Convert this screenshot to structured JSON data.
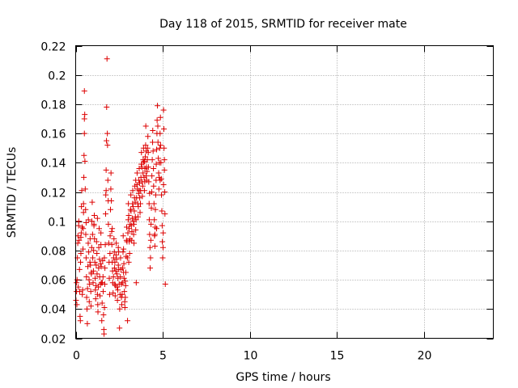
{
  "chart_data": {
    "type": "scatter",
    "title": "Day 118 of 2015, SRMTID for receiver mate",
    "xlabel": "GPS time / hours",
    "ylabel": "SRMTID / TECUs",
    "xlim": [
      0,
      24
    ],
    "ylim": [
      0.02,
      0.22
    ],
    "x_ticks": [
      0,
      5,
      10,
      15,
      20
    ],
    "x_tick_labels": [
      "0",
      "5",
      "10",
      "15",
      "20"
    ],
    "y_ticks": [
      0.02,
      0.04,
      0.06,
      0.08,
      0.1,
      0.12,
      0.14,
      0.16,
      0.18,
      0.2,
      0.22
    ],
    "y_tick_labels": [
      "0.02",
      "0.04",
      "0.06",
      "0.08",
      "0.1",
      "0.12",
      "0.14",
      "0.16",
      "0.18",
      "0.2",
      "0.22"
    ],
    "grid": true,
    "legend": "none",
    "marker": "+",
    "color": "#dd0000",
    "points": [
      [
        0.02,
        0.046
      ],
      [
        0.05,
        0.052
      ],
      [
        0.05,
        0.058
      ],
      [
        0.07,
        0.043
      ],
      [
        0.08,
        0.06
      ],
      [
        0.1,
        0.075
      ],
      [
        0.12,
        0.085
      ],
      [
        0.13,
        0.09
      ],
      [
        0.15,
        0.055
      ],
      [
        0.17,
        0.097
      ],
      [
        0.18,
        0.1
      ],
      [
        0.2,
        0.087
      ],
      [
        0.22,
        0.067
      ],
      [
        0.23,
        0.052
      ],
      [
        0.25,
        0.035
      ],
      [
        0.27,
        0.032
      ],
      [
        0.28,
        0.072
      ],
      [
        0.3,
        0.078
      ],
      [
        0.32,
        0.092
      ],
      [
        0.33,
        0.11
      ],
      [
        0.35,
        0.121
      ],
      [
        0.37,
        0.096
      ],
      [
        0.38,
        0.05
      ],
      [
        0.4,
        0.053
      ],
      [
        0.42,
        0.081
      ],
      [
        0.43,
        0.095
      ],
      [
        0.45,
        0.106
      ],
      [
        0.47,
        0.13
      ],
      [
        0.48,
        0.145
      ],
      [
        0.5,
        0.16
      ],
      [
        0.5,
        0.17
      ],
      [
        0.5,
        0.189
      ],
      [
        0.52,
        0.173
      ],
      [
        0.53,
        0.141
      ],
      [
        0.55,
        0.122
      ],
      [
        0.57,
        0.108
      ],
      [
        0.58,
        0.091
      ],
      [
        0.6,
        0.075
      ],
      [
        0.62,
        0.062
      ],
      [
        0.63,
        0.048
      ],
      [
        0.65,
        0.04
      ],
      [
        0.67,
        0.03
      ],
      [
        0.68,
        0.054
      ],
      [
        0.7,
        0.069
      ],
      [
        0.72,
        0.085
      ],
      [
        0.73,
        0.101
      ],
      [
        0.75,
        0.079
      ],
      [
        0.77,
        0.06
      ],
      [
        0.78,
        0.045
      ],
      [
        0.8,
        0.057
      ],
      [
        0.82,
        0.072
      ],
      [
        0.83,
        0.088
      ],
      [
        0.85,
        0.07
      ],
      [
        0.87,
        0.052
      ],
      [
        0.88,
        0.042
      ],
      [
        0.9,
        0.065
      ],
      [
        0.92,
        0.082
      ],
      [
        0.93,
        0.1
      ],
      [
        0.95,
        0.113
      ],
      [
        0.97,
        0.091
      ],
      [
        0.98,
        0.075
      ],
      [
        1.0,
        0.058
      ],
      [
        1.02,
        0.066
      ],
      [
        1.03,
        0.08
      ],
      [
        1.05,
        0.097
      ],
      [
        1.07,
        0.104
      ],
      [
        1.08,
        0.088
      ],
      [
        1.1,
        0.072
      ],
      [
        1.12,
        0.061
      ],
      [
        1.13,
        0.053
      ],
      [
        1.15,
        0.047
      ],
      [
        1.17,
        0.056
      ],
      [
        1.18,
        0.07
      ],
      [
        1.2,
        0.086
      ],
      [
        1.22,
        0.078
      ],
      [
        1.23,
        0.064
      ],
      [
        1.25,
        0.05
      ],
      [
        1.27,
        0.043
      ],
      [
        1.28,
        0.038
      ],
      [
        1.3,
        0.055
      ],
      [
        1.32,
        0.068
      ],
      [
        1.33,
        0.082
      ],
      [
        1.35,
        0.095
      ],
      [
        1.37,
        0.074
      ],
      [
        1.38,
        0.062
      ],
      [
        1.4,
        0.049
      ],
      [
        1.42,
        0.057
      ],
      [
        1.43,
        0.071
      ],
      [
        1.45,
        0.084
      ],
      [
        1.47,
        0.069
      ],
      [
        1.48,
        0.058
      ],
      [
        1.5,
        0.032
      ],
      [
        1.52,
        0.044
      ],
      [
        1.53,
        0.058
      ],
      [
        1.55,
        0.073
      ],
      [
        1.57,
        0.062
      ],
      [
        1.58,
        0.052
      ],
      [
        1.6,
        0.036
      ],
      [
        1.62,
        0.026
      ],
      [
        1.63,
        0.023
      ],
      [
        1.65,
        0.041
      ],
      [
        1.67,
        0.057
      ],
      [
        1.68,
        0.068
      ],
      [
        1.7,
        0.084
      ],
      [
        1.72,
        0.105
      ],
      [
        1.73,
        0.118
      ],
      [
        1.75,
        0.135
      ],
      [
        1.77,
        0.155
      ],
      [
        1.78,
        0.178
      ],
      [
        1.8,
        0.211
      ],
      [
        1.82,
        0.16
      ],
      [
        1.83,
        0.152
      ],
      [
        1.85,
        0.128
      ],
      [
        1.87,
        0.114
      ],
      [
        1.88,
        0.098
      ],
      [
        1.9,
        0.085
      ],
      [
        1.92,
        0.072
      ],
      [
        1.93,
        0.061
      ],
      [
        1.95,
        0.05
      ],
      [
        1.97,
        0.078
      ],
      [
        1.98,
        0.09
      ],
      [
        2.0,
        0.108
      ],
      [
        2.02,
        0.122
      ],
      [
        2.03,
        0.133
      ],
      [
        2.05,
        0.114
      ],
      [
        2.07,
        0.093
      ],
      [
        2.08,
        0.084
      ],
      [
        2.1,
        0.072
      ],
      [
        2.12,
        0.066
      ],
      [
        2.13,
        0.058
      ],
      [
        2.15,
        0.051
      ],
      [
        2.17,
        0.062
      ],
      [
        2.18,
        0.075
      ],
      [
        2.2,
        0.088
      ],
      [
        2.22,
        0.079
      ],
      [
        2.23,
        0.068
      ],
      [
        2.25,
        0.057
      ],
      [
        2.27,
        0.049
      ],
      [
        2.28,
        0.056
      ],
      [
        2.3,
        0.066
      ],
      [
        2.32,
        0.077
      ],
      [
        2.33,
        0.085
      ],
      [
        2.35,
        0.074
      ],
      [
        2.37,
        0.064
      ],
      [
        2.38,
        0.055
      ],
      [
        2.4,
        0.046
      ],
      [
        2.42,
        0.053
      ],
      [
        2.43,
        0.061
      ],
      [
        2.45,
        0.07
      ],
      [
        2.47,
        0.079
      ],
      [
        2.48,
        0.067
      ],
      [
        2.5,
        0.057
      ],
      [
        2.52,
        0.027
      ],
      [
        2.53,
        0.04
      ],
      [
        2.55,
        0.05
      ],
      [
        2.57,
        0.062
      ],
      [
        2.58,
        0.075
      ],
      [
        2.6,
        0.067
      ],
      [
        2.62,
        0.057
      ],
      [
        2.63,
        0.048
      ],
      [
        2.65,
        0.043
      ],
      [
        2.67,
        0.05
      ],
      [
        2.68,
        0.058
      ],
      [
        2.7,
        0.068
      ],
      [
        2.72,
        0.079
      ],
      [
        2.73,
        0.09
      ],
      [
        2.75,
        0.081
      ],
      [
        2.77,
        0.071
      ],
      [
        2.78,
        0.061
      ],
      [
        2.8,
        0.052
      ],
      [
        2.82,
        0.045
      ],
      [
        2.83,
        0.041
      ],
      [
        2.85,
        0.048
      ],
      [
        2.87,
        0.056
      ],
      [
        2.88,
        0.065
      ],
      [
        2.9,
        0.076
      ],
      [
        2.92,
        0.087
      ],
      [
        2.93,
        0.096
      ],
      [
        2.95,
        0.086
      ],
      [
        2.97,
        0.075
      ],
      [
        2.98,
        0.032
      ],
      [
        3.0,
        0.092
      ],
      [
        3.02,
        0.101
      ],
      [
        3.03,
        0.112
      ],
      [
        3.05,
        0.104
      ],
      [
        3.07,
        0.095
      ],
      [
        3.08,
        0.086
      ],
      [
        3.1,
        0.078
      ],
      [
        3.12,
        0.088
      ],
      [
        3.13,
        0.098
      ],
      [
        3.15,
        0.108
      ],
      [
        3.17,
        0.118
      ],
      [
        3.18,
        0.107
      ],
      [
        3.2,
        0.097
      ],
      [
        3.22,
        0.087
      ],
      [
        3.23,
        0.093
      ],
      [
        3.25,
        0.102
      ],
      [
        3.27,
        0.112
      ],
      [
        3.28,
        0.121
      ],
      [
        3.3,
        0.11
      ],
      [
        3.32,
        0.1
      ],
      [
        3.33,
        0.091
      ],
      [
        3.35,
        0.098
      ],
      [
        3.37,
        0.107
      ],
      [
        3.38,
        0.116
      ],
      [
        3.4,
        0.124
      ],
      [
        3.42,
        0.113
      ],
      [
        3.43,
        0.103
      ],
      [
        3.45,
        0.094
      ],
      [
        3.47,
        0.101
      ],
      [
        3.48,
        0.058
      ],
      [
        3.5,
        0.116
      ],
      [
        3.52,
        0.125
      ],
      [
        3.53,
        0.133
      ],
      [
        3.55,
        0.122
      ],
      [
        3.57,
        0.112
      ],
      [
        3.58,
        0.103
      ],
      [
        3.6,
        0.11
      ],
      [
        3.62,
        0.119
      ],
      [
        3.63,
        0.128
      ],
      [
        3.65,
        0.136
      ],
      [
        3.67,
        0.126
      ],
      [
        3.68,
        0.116
      ],
      [
        3.7,
        0.106
      ],
      [
        3.72,
        0.112
      ],
      [
        3.73,
        0.121
      ],
      [
        3.75,
        0.13
      ],
      [
        3.77,
        0.139
      ],
      [
        3.78,
        0.147
      ],
      [
        3.8,
        0.137
      ],
      [
        3.82,
        0.127
      ],
      [
        3.83,
        0.117
      ],
      [
        3.85,
        0.124
      ],
      [
        3.87,
        0.133
      ],
      [
        3.88,
        0.142
      ],
      [
        3.9,
        0.15
      ],
      [
        3.92,
        0.14
      ],
      [
        3.93,
        0.13
      ],
      [
        3.95,
        0.121
      ],
      [
        3.97,
        0.127
      ],
      [
        3.98,
        0.136
      ],
      [
        4.0,
        0.144
      ],
      [
        4.02,
        0.152
      ],
      [
        4.03,
        0.165
      ],
      [
        4.05,
        0.148
      ],
      [
        4.07,
        0.137
      ],
      [
        4.08,
        0.128
      ],
      [
        4.1,
        0.134
      ],
      [
        4.12,
        0.142
      ],
      [
        4.13,
        0.15
      ],
      [
        4.15,
        0.158
      ],
      [
        4.17,
        0.147
      ],
      [
        4.18,
        0.137
      ],
      [
        4.2,
        0.127
      ],
      [
        4.22,
        0.112
      ],
      [
        4.23,
        0.101
      ],
      [
        4.25,
        0.091
      ],
      [
        4.27,
        0.082
      ],
      [
        4.28,
        0.068
      ],
      [
        4.3,
        0.075
      ],
      [
        4.32,
        0.087
      ],
      [
        4.33,
        0.098
      ],
      [
        4.35,
        0.109
      ],
      [
        4.37,
        0.12
      ],
      [
        4.38,
        0.131
      ],
      [
        4.4,
        0.142
      ],
      [
        4.42,
        0.154
      ],
      [
        4.43,
        0.162
      ],
      [
        4.45,
        0.148
      ],
      [
        4.47,
        0.136
      ],
      [
        4.48,
        0.124
      ],
      [
        4.5,
        0.112
      ],
      [
        4.52,
        0.101
      ],
      [
        4.53,
        0.09
      ],
      [
        4.55,
        0.083
      ],
      [
        4.57,
        0.096
      ],
      [
        4.58,
        0.108
      ],
      [
        4.6,
        0.118
      ],
      [
        4.62,
        0.128
      ],
      [
        4.63,
        0.139
      ],
      [
        4.65,
        0.149
      ],
      [
        4.67,
        0.16
      ],
      [
        4.68,
        0.169
      ],
      [
        4.7,
        0.179
      ],
      [
        4.72,
        0.165
      ],
      [
        4.73,
        0.154
      ],
      [
        4.75,
        0.143
      ],
      [
        4.77,
        0.133
      ],
      [
        4.78,
        0.122
      ],
      [
        4.8,
        0.13
      ],
      [
        4.82,
        0.14
      ],
      [
        4.83,
        0.15
      ],
      [
        4.85,
        0.16
      ],
      [
        4.87,
        0.171
      ],
      [
        4.88,
        0.152
      ],
      [
        4.9,
        0.14
      ],
      [
        4.92,
        0.129
      ],
      [
        4.93,
        0.118
      ],
      [
        4.95,
        0.107
      ],
      [
        4.97,
        0.097
      ],
      [
        4.98,
        0.086
      ],
      [
        5.0,
        0.075
      ],
      [
        5.02,
        0.082
      ],
      [
        5.03,
        0.092
      ],
      [
        5.05,
        0.176
      ],
      [
        5.07,
        0.163
      ],
      [
        5.08,
        0.15
      ],
      [
        5.1,
        0.135
      ],
      [
        5.12,
        0.12
      ],
      [
        5.13,
        0.105
      ],
      [
        5.15,
        0.057
      ],
      [
        0.3,
        0.089
      ],
      [
        0.6,
        0.099
      ],
      [
        0.9,
        0.064
      ],
      [
        1.25,
        0.102
      ],
      [
        1.45,
        0.092
      ],
      [
        1.75,
        0.121
      ],
      [
        2.1,
        0.095
      ],
      [
        2.45,
        0.082
      ],
      [
        2.75,
        0.065
      ],
      [
        3.05,
        0.072
      ],
      [
        3.35,
        0.085
      ],
      [
        3.65,
        0.121
      ],
      [
        3.95,
        0.141
      ],
      [
        4.25,
        0.119
      ],
      [
        4.55,
        0.091
      ],
      [
        4.85,
        0.128
      ],
      [
        5.05,
        0.125
      ],
      [
        0.45,
        0.112
      ],
      [
        1.05,
        0.098
      ],
      [
        1.65,
        0.075
      ],
      [
        2.25,
        0.072
      ],
      [
        2.85,
        0.059
      ],
      [
        3.45,
        0.128
      ],
      [
        4.05,
        0.131
      ],
      [
        4.65,
        0.095
      ],
      [
        5.1,
        0.142
      ]
    ]
  }
}
